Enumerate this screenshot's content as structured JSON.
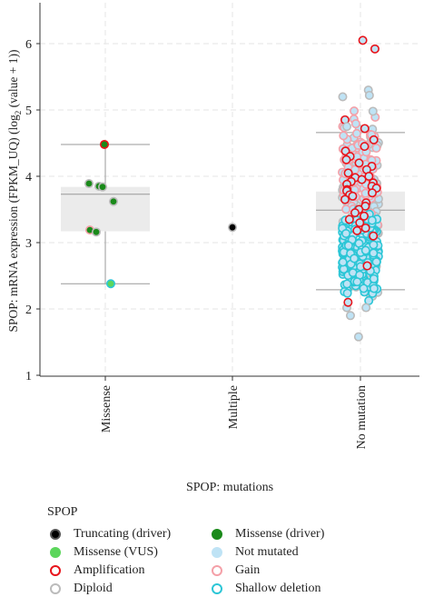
{
  "chart_data": {
    "type": "scatter",
    "title": "",
    "xlabel": "SPOP: mutations",
    "ylabel_main": "SPOP: mRNA expression (FPKM_UQ) (log",
    "ylabel_sub": "2",
    "ylabel_tail": " (value + 1))",
    "ylim": [
      1,
      6.5
    ],
    "yticks": [
      "1",
      "2",
      "3",
      "4",
      "5",
      "6"
    ],
    "categories": [
      "Missense",
      "Multiple",
      "No mutation"
    ],
    "grid": true,
    "legend_position": "bottom",
    "legend_title": "SPOP",
    "legend": [
      {
        "key": "truncating",
        "label": "Truncating (driver)",
        "fill": "#000000",
        "stroke": "#555555"
      },
      {
        "key": "missense_driver",
        "label": "Missense (driver)",
        "fill": "#1a8a1a",
        "stroke": "#1a8a1a"
      },
      {
        "key": "missense_vus",
        "label": "Missense (VUS)",
        "fill": "#5cd65c",
        "stroke": "#5cd65c"
      },
      {
        "key": "not_mutated",
        "label": "Not mutated",
        "fill": "#bfe3f5",
        "stroke": "#bfe3f5"
      },
      {
        "key": "amplification",
        "label": "Amplification",
        "fill": "#ffffff",
        "stroke": "#e8141b"
      },
      {
        "key": "gain",
        "label": "Gain",
        "fill": "#ffffff",
        "stroke": "#f4a0a8"
      },
      {
        "key": "diploid",
        "label": "Diploid",
        "fill": "#ffffff",
        "stroke": "#bbbbbb"
      },
      {
        "key": "shallow_deletion",
        "label": "Shallow deletion",
        "fill": "#ffffff",
        "stroke": "#2cc6d6"
      }
    ],
    "boxes": [
      {
        "category": "Missense",
        "q1": 3.17,
        "median": 3.73,
        "q3": 3.84,
        "whisker_low": 2.38,
        "whisker_high": 4.48
      },
      {
        "category": "No mutation",
        "q1": 3.18,
        "median": 3.49,
        "q3": 3.77,
        "whisker_low": 2.29,
        "whisker_high": 4.66
      }
    ],
    "points": {
      "Missense": [
        {
          "y": 4.48,
          "mut": "missense_driver",
          "cna": "amplification"
        },
        {
          "y": 3.89,
          "mut": "missense_driver",
          "cna": "diploid"
        },
        {
          "y": 3.85,
          "mut": "missense_driver",
          "cna": "diploid"
        },
        {
          "y": 3.84,
          "mut": "missense_driver",
          "cna": "diploid"
        },
        {
          "y": 3.62,
          "mut": "missense_driver",
          "cna": "diploid"
        },
        {
          "y": 3.19,
          "mut": "missense_driver",
          "cna": "gain"
        },
        {
          "y": 3.16,
          "mut": "missense_driver",
          "cna": "diploid"
        },
        {
          "y": 2.38,
          "mut": "missense_vus",
          "cna": "shallow_deletion"
        }
      ],
      "Multiple": [
        {
          "y": 3.23,
          "mut": "truncating",
          "cna": "diploid"
        }
      ],
      "No mutation": {
        "mut": "not_mutated",
        "n_shallow_deletion": 230,
        "range_shallow_deletion": [
          2.0,
          3.6
        ],
        "n_diploid": 160,
        "range_diploid": [
          1.58,
          5.35
        ],
        "n_gain": 90,
        "range_gain": [
          3.0,
          5.25
        ],
        "amplification": [
          6.05,
          5.92,
          4.85,
          4.72,
          4.55,
          4.45,
          4.38,
          4.3,
          4.25,
          4.2,
          4.15,
          4.1,
          4.05,
          4.0,
          3.98,
          3.95,
          3.92,
          3.9,
          3.88,
          3.85,
          3.82,
          3.8,
          3.78,
          3.75,
          3.72,
          3.7,
          3.65,
          3.6,
          3.55,
          3.5,
          3.45,
          3.4,
          3.35,
          3.3,
          3.22,
          3.18,
          3.1,
          2.65,
          2.1
        ]
      }
    }
  }
}
